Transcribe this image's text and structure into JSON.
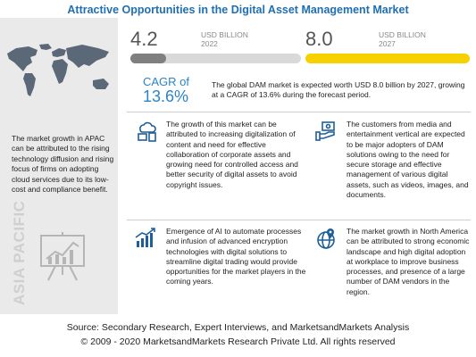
{
  "title": "Attractive Opportunities in the Digital Asset Management Market",
  "market": {
    "v2022": "4.2",
    "u2022": "USD BILLION",
    "y2022": "2022",
    "v2027": "8.0",
    "u2027": "USD BILLION",
    "y2027": "2027",
    "fill_2022_fraction": 0.21
  },
  "cagr": {
    "label": "CAGR of",
    "value": "13.6%"
  },
  "summary": "The global DAM market is expected worth USD 8.0 billion by 2027, growing at a CAGR of 13.6% during the forecast period.",
  "apac_text": "The market growth in APAC can be attributed to the rising technology diffusion and rising focus of firms on adopting cloud services due to its low-cost and compliance benefit.",
  "apac_label": "ASIA PACIFIC",
  "blocks": {
    "b1": "The growth of this market can be attributed to increasing digitalization of content and need for effective collaboration of corporate assets and growing need for controlled access and better security of digital assets to avoid copyright issues.",
    "b2": "The customers from media and entertainment vertical are expected to be major adopters of DAM solutions owing to the need for secure storage and effective management of various digital assets, such as videos, images, and documents.",
    "b3": "Emergence of AI to automate processes and infusion of advanced encryption technologies with digital solutions to streamline digital trading would provide opportunities for the market players in the coming years.",
    "b4": "The market growth in North America can be attributed to strong economic landscape and high digital adoption at workplace to improve business processes, and presence of a large number of DAM vendors in the region."
  },
  "footer": {
    "source": "Source: Secondary Research, Expert Interviews, and MarketsandMarkets Analysis",
    "copyright": "© 2009 - 2020 MarketsandMarkets Research Private Ltd. All rights reserved"
  },
  "colors": {
    "title": "#1f6fb2",
    "accent_blue": "#2b84c8",
    "yellow": "#f7d000",
    "grey_bar": "#7f7f7f"
  },
  "icons": [
    "world-map-icon",
    "presentation-board-icon",
    "cloud-devices-icon",
    "money-hand-icon",
    "growth-chart-icon",
    "globe-pin-icon"
  ]
}
